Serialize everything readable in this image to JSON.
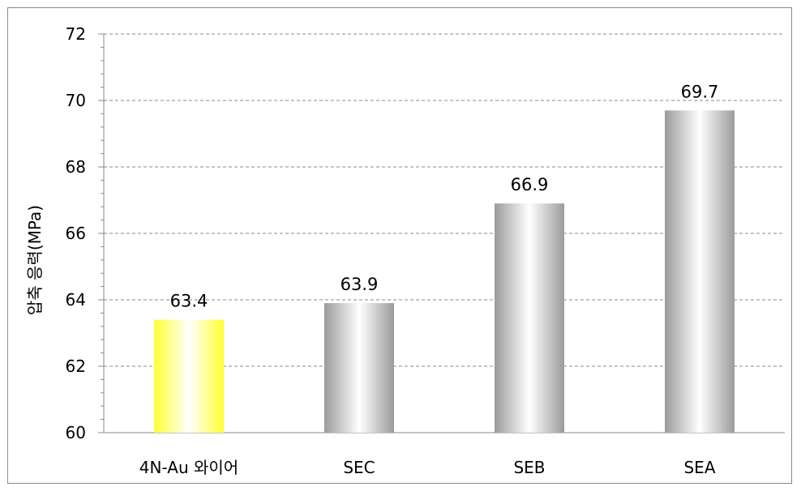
{
  "chart_data": {
    "type": "bar",
    "categories": [
      "4N-Au 와이어",
      "SEC",
      "SEB",
      "SEA"
    ],
    "values": [
      63.4,
      63.9,
      66.9,
      69.7
    ],
    "data_labels": [
      "63.4",
      "63.9",
      "66.9",
      "69.7"
    ],
    "title": "",
    "xlabel": "",
    "ylabel": "압축 응력(MPa)",
    "ylim": [
      60,
      72
    ],
    "yticks": [
      60,
      62,
      64,
      66,
      68,
      70,
      72
    ],
    "ytick_labels": [
      "60",
      "62",
      "64",
      "66",
      "68",
      "70",
      "72"
    ],
    "grid": true,
    "legend": "none",
    "bar_colors": [
      "#ffff33",
      "#9b9b9b",
      "#9b9b9b",
      "#9b9b9b"
    ]
  }
}
